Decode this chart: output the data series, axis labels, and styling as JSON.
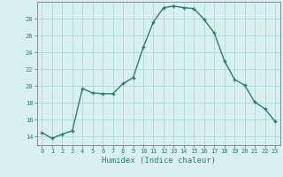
{
  "x": [
    0,
    1,
    2,
    3,
    4,
    5,
    6,
    7,
    8,
    9,
    10,
    11,
    12,
    13,
    14,
    15,
    16,
    17,
    18,
    19,
    20,
    21,
    22,
    23
  ],
  "y": [
    14.5,
    13.8,
    14.3,
    14.7,
    19.7,
    19.2,
    19.1,
    19.1,
    20.3,
    21.0,
    24.6,
    27.6,
    29.3,
    29.5,
    29.3,
    29.2,
    27.9,
    26.3,
    23.0,
    20.8,
    20.1,
    18.1,
    17.3,
    15.8
  ],
  "line_color": "#2e7d6e",
  "marker": "+",
  "marker_size": 3,
  "bg_color": "#d9f0f0",
  "grid_color": "#b0d8d8",
  "xlabel": "Humidex (Indice chaleur)",
  "xlim": [
    -0.5,
    23.5
  ],
  "ylim": [
    13,
    30
  ],
  "yticks": [
    14,
    16,
    18,
    20,
    22,
    24,
    26,
    28
  ],
  "xtick_labels": [
    "0",
    "1",
    "2",
    "3",
    "4",
    "5",
    "6",
    "7",
    "8",
    "9",
    "10",
    "11",
    "12",
    "13",
    "14",
    "15",
    "16",
    "17",
    "18",
    "19",
    "20",
    "21",
    "22",
    "23"
  ],
  "tick_color": "#2e7d6e",
  "axis_color": "#888888",
  "label_color": "#2e7d6e",
  "tick_fontsize": 5,
  "xlabel_fontsize": 6.5
}
